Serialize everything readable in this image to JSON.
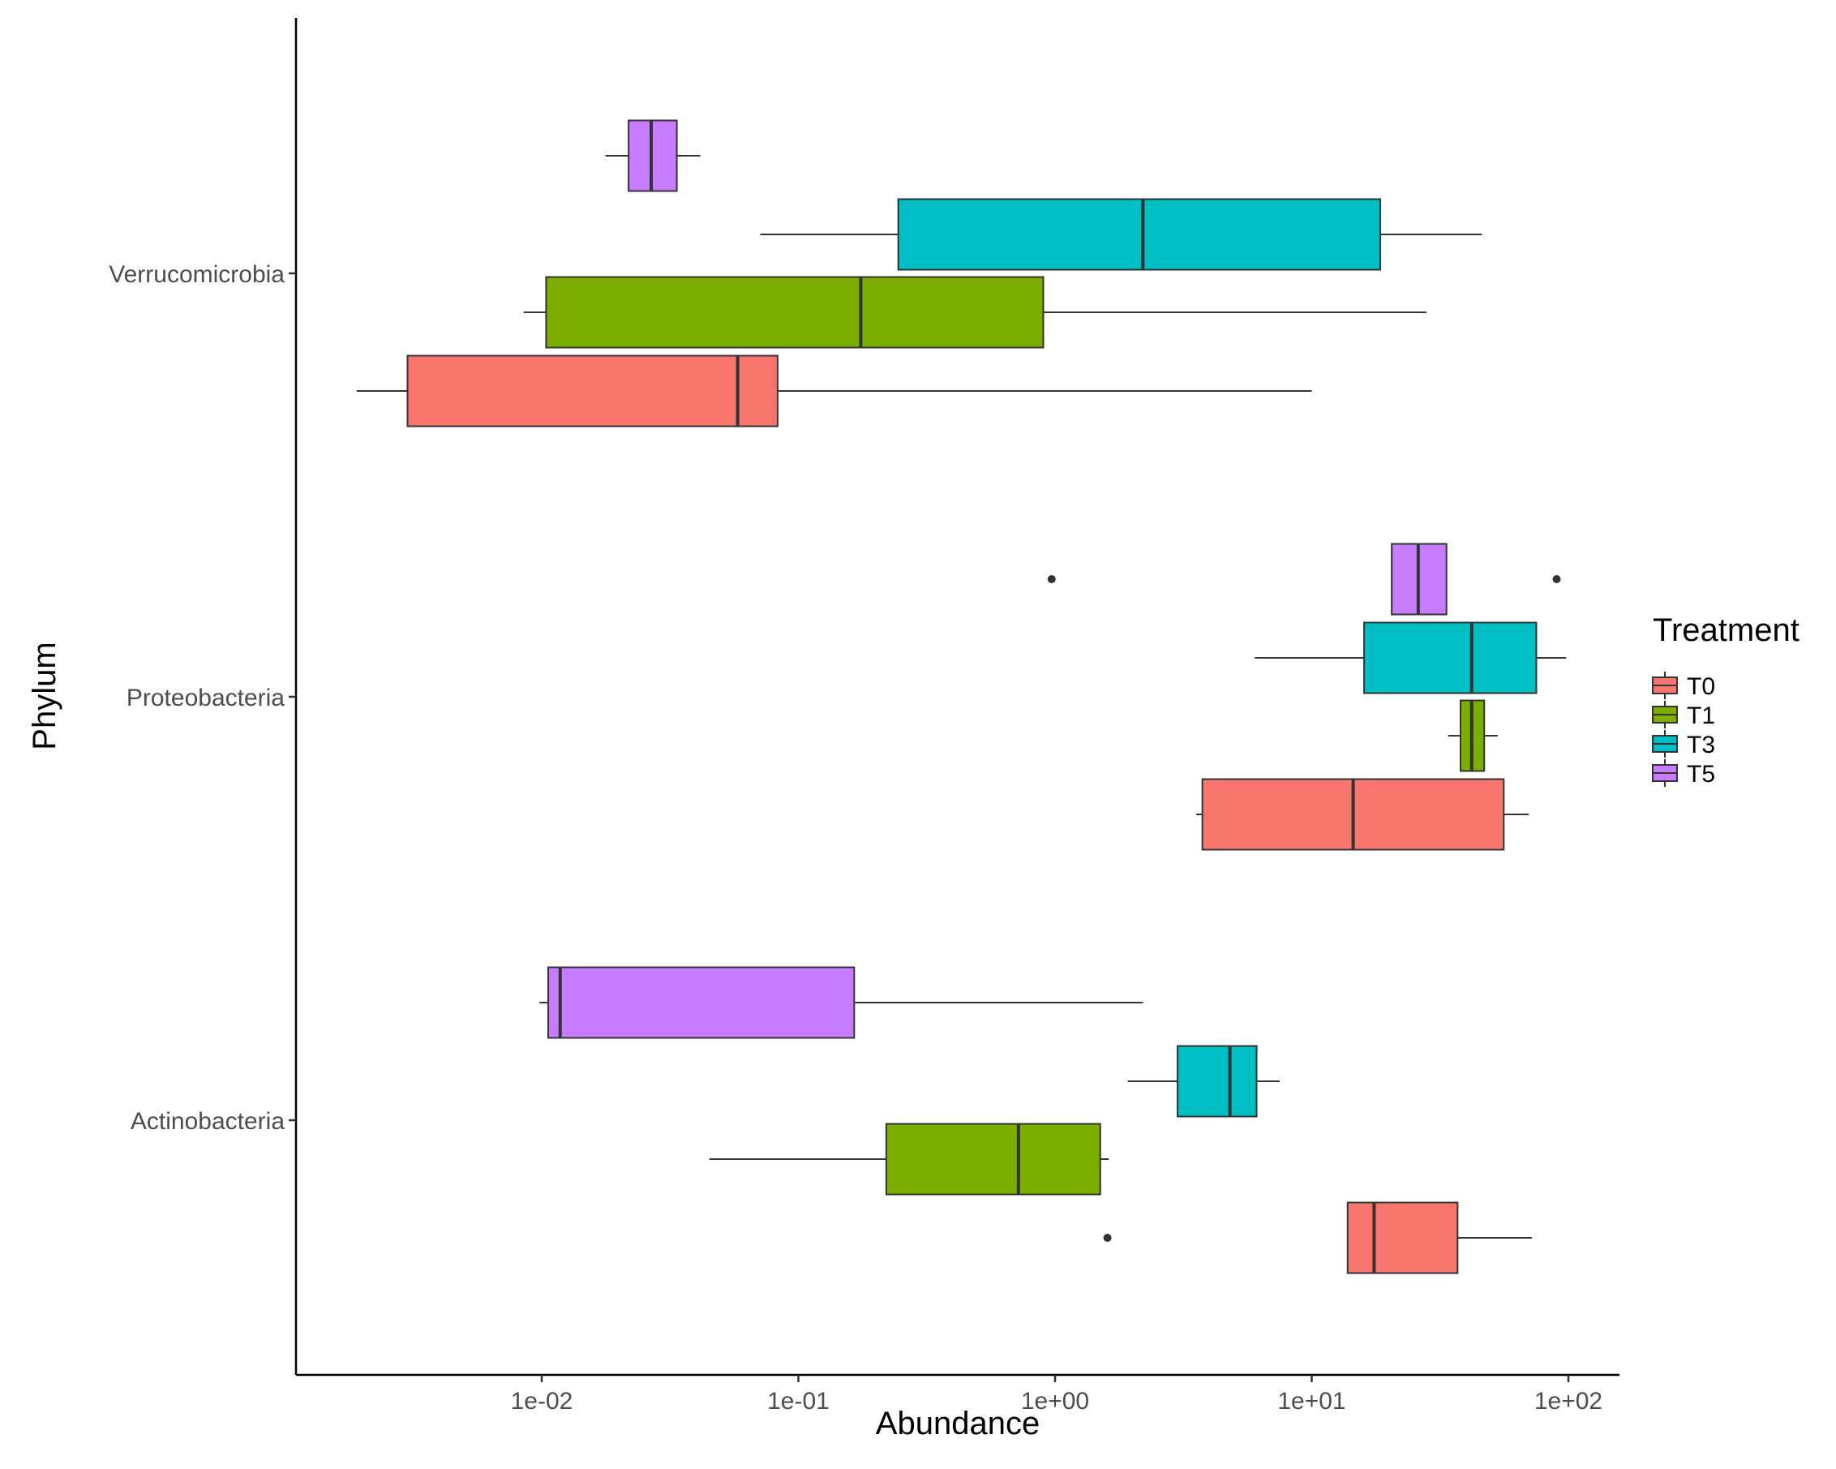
{
  "chart_data": {
    "type": "boxplot",
    "orientation": "horizontal",
    "xlabel": "Abundance",
    "ylabel": "Phylum",
    "x_scale": "log10",
    "xlim": [
      0.0013,
      230
    ],
    "x_ticks": [
      {
        "value": 0.01,
        "label": "1e-02"
      },
      {
        "value": 0.1,
        "label": "1e-01"
      },
      {
        "value": 1,
        "label": "1e+00"
      },
      {
        "value": 10,
        "label": "1e+01"
      },
      {
        "value": 100,
        "label": "1e+02"
      }
    ],
    "categories": [
      "Verrucomicrobia",
      "Proteobacteria",
      "Actinobacteria"
    ],
    "legend": {
      "title": "Treatment",
      "position": "right",
      "entries": [
        {
          "label": "T0",
          "color": "#F8766D"
        },
        {
          "label": "T1",
          "color": "#7CAE00"
        },
        {
          "label": "T3",
          "color": "#00BFC4"
        },
        {
          "label": "T5",
          "color": "#C77CFF"
        }
      ]
    },
    "series": [
      {
        "name": "T0",
        "color": "#F8766D",
        "boxes": [
          {
            "category": "Verrucomicrobia",
            "whisker_low": 0.0019,
            "q1": 0.003,
            "median": 0.058,
            "q3": 0.083,
            "whisker_high": 10.0,
            "outliers": []
          },
          {
            "category": "Proteobacteria",
            "whisker_low": 3.55,
            "q1": 3.75,
            "median": 14.5,
            "q3": 56,
            "whisker_high": 70,
            "outliers": []
          },
          {
            "category": "Actinobacteria",
            "whisker_low": 13.8,
            "q1": 13.8,
            "median": 17.5,
            "q3": 37,
            "whisker_high": 72,
            "outliers": [
              1.6
            ]
          }
        ]
      },
      {
        "name": "T1",
        "color": "#7CAE00",
        "boxes": [
          {
            "category": "Verrucomicrobia",
            "whisker_low": 0.0085,
            "q1": 0.0104,
            "median": 0.175,
            "q3": 0.9,
            "whisker_high": 28,
            "outliers": []
          },
          {
            "category": "Proteobacteria",
            "whisker_low": 34,
            "q1": 38,
            "median": 42,
            "q3": 47,
            "whisker_high": 53,
            "outliers": []
          },
          {
            "category": "Actinobacteria",
            "whisker_low": 0.045,
            "q1": 0.22,
            "median": 0.72,
            "q3": 1.5,
            "whisker_high": 1.62,
            "outliers": []
          }
        ]
      },
      {
        "name": "T3",
        "color": "#00BFC4",
        "boxes": [
          {
            "category": "Verrucomicrobia",
            "whisker_low": 0.071,
            "q1": 0.245,
            "median": 2.2,
            "q3": 18.5,
            "whisker_high": 46,
            "outliers": []
          },
          {
            "category": "Proteobacteria",
            "whisker_low": 6.0,
            "q1": 16.0,
            "median": 42,
            "q3": 75,
            "whisker_high": 98,
            "outliers": []
          },
          {
            "category": "Actinobacteria",
            "whisker_low": 1.92,
            "q1": 3.0,
            "median": 4.8,
            "q3": 6.1,
            "whisker_high": 7.5,
            "outliers": []
          }
        ]
      },
      {
        "name": "T5",
        "color": "#C77CFF",
        "boxes": [
          {
            "category": "Verrucomicrobia",
            "whisker_low": 0.0177,
            "q1": 0.0218,
            "median": 0.0267,
            "q3": 0.0336,
            "whisker_high": 0.0415,
            "outliers": []
          },
          {
            "category": "Proteobacteria",
            "whisker_low": 20.5,
            "q1": 20.5,
            "median": 26,
            "q3": 33.5,
            "whisker_high": 33.5,
            "outliers": [
              0.97,
              90
            ]
          },
          {
            "category": "Actinobacteria",
            "whisker_low": 0.0098,
            "q1": 0.0106,
            "median": 0.0118,
            "q3": 0.165,
            "whisker_high": 2.2,
            "outliers": []
          }
        ]
      }
    ]
  }
}
